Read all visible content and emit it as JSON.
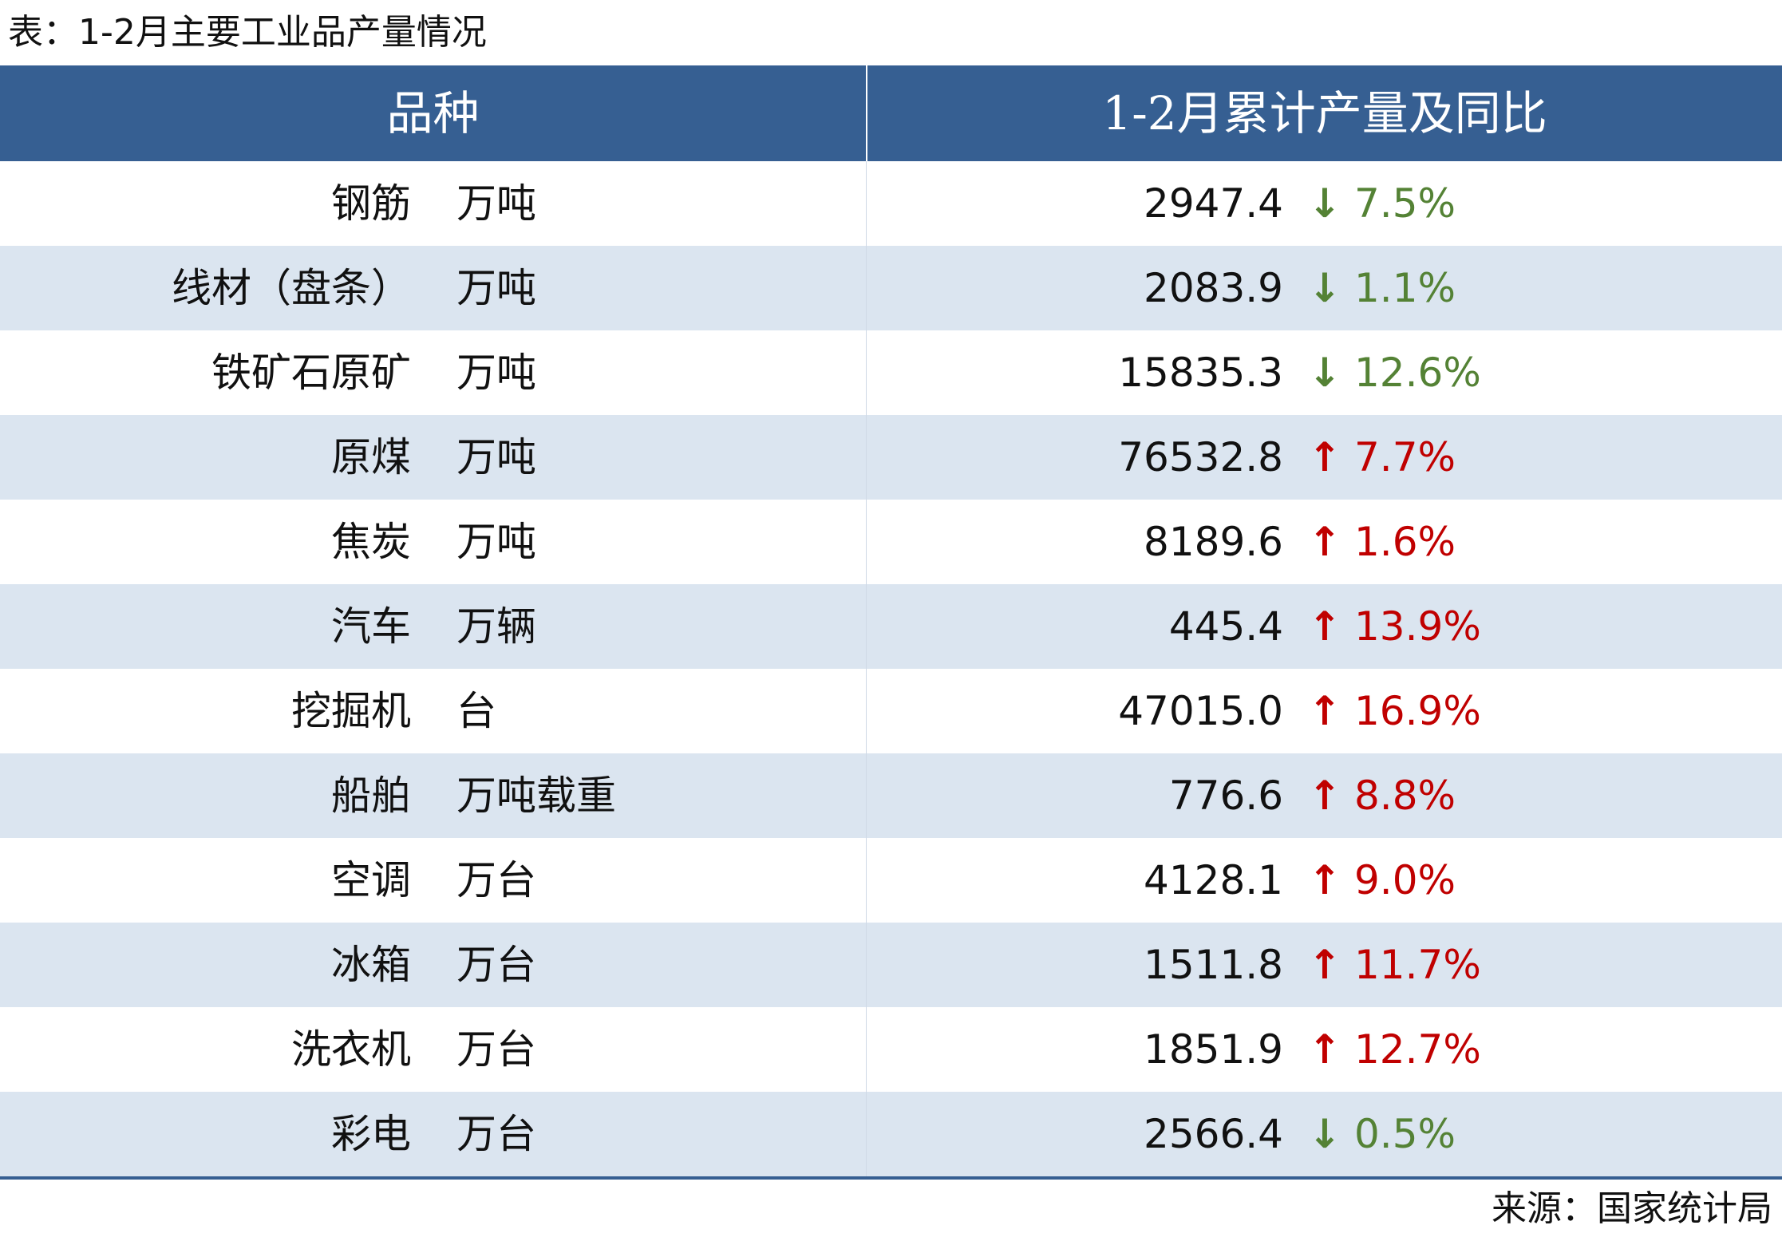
{
  "caption": "表：1-2月主要工业品产量情况",
  "source": "来源：国家统计局",
  "colors": {
    "header_bg": "#365f92",
    "header_text": "#ffffff",
    "stripe": "#dbe5f0",
    "up": "#c00000",
    "down": "#548235"
  },
  "chart_data": {
    "type": "table",
    "columns": [
      "品种",
      "1-2月累计产量及同比"
    ],
    "rows": [
      {
        "name": "钢筋",
        "unit": "万吨",
        "value": "2947.4",
        "dir": "down",
        "arrow": "↓",
        "pct": "7.5%"
      },
      {
        "name": "线材（盘条）",
        "unit": "万吨",
        "value": "2083.9",
        "dir": "down",
        "arrow": "↓",
        "pct": "1.1%"
      },
      {
        "name": "铁矿石原矿",
        "unit": "万吨",
        "value": "15835.3",
        "dir": "down",
        "arrow": "↓",
        "pct": "12.6%"
      },
      {
        "name": "原煤",
        "unit": "万吨",
        "value": "76532.8",
        "dir": "up",
        "arrow": "↑",
        "pct": "7.7%"
      },
      {
        "name": "焦炭",
        "unit": "万吨",
        "value": "8189.6",
        "dir": "up",
        "arrow": "↑",
        "pct": "1.6%"
      },
      {
        "name": "汽车",
        "unit": "万辆",
        "value": "445.4",
        "dir": "up",
        "arrow": "↑",
        "pct": "13.9%"
      },
      {
        "name": "挖掘机",
        "unit": "台",
        "value": "47015.0",
        "dir": "up",
        "arrow": "↑",
        "pct": "16.9%"
      },
      {
        "name": "船舶",
        "unit": "万吨载重",
        "value": "776.6",
        "dir": "up",
        "arrow": "↑",
        "pct": "8.8%"
      },
      {
        "name": "空调",
        "unit": "万台",
        "value": "4128.1",
        "dir": "up",
        "arrow": "↑",
        "pct": "9.0%"
      },
      {
        "name": "冰箱",
        "unit": "万台",
        "value": "1511.8",
        "dir": "up",
        "arrow": "↑",
        "pct": "11.7%"
      },
      {
        "name": "洗衣机",
        "unit": "万台",
        "value": "1851.9",
        "dir": "up",
        "arrow": "↑",
        "pct": "12.7%"
      },
      {
        "name": "彩电",
        "unit": "万台",
        "value": "2566.4",
        "dir": "down",
        "arrow": "↓",
        "pct": "0.5%"
      }
    ]
  }
}
